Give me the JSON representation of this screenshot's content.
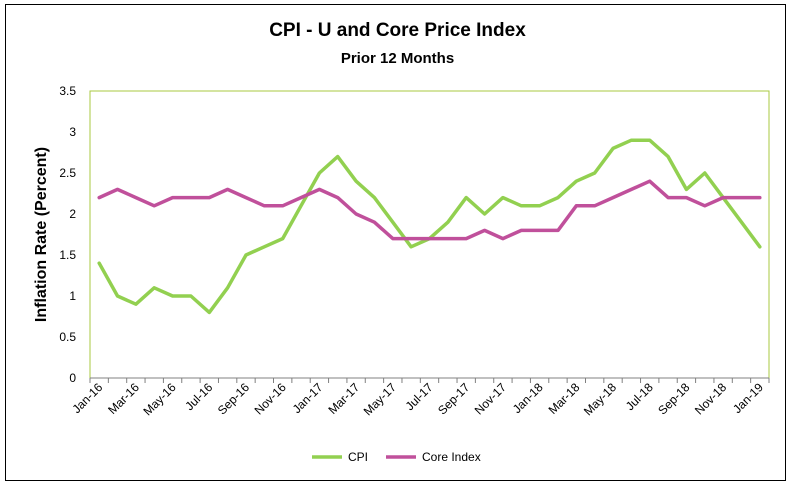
{
  "chart_data": {
    "type": "line",
    "title": "CPI - U and Core Price Index",
    "subtitle": "Prior 12 Months",
    "xlabel": "",
    "ylabel": "Inflation Rate (Percent)",
    "ylim": [
      0,
      3.5
    ],
    "yticks": [
      "0",
      "0.5",
      "1",
      "1.5",
      "2",
      "2.5",
      "3",
      "3.5"
    ],
    "x": [
      "Jan-16",
      "Feb-16",
      "Mar-16",
      "Apr-16",
      "May-16",
      "Jun-16",
      "Jul-16",
      "Aug-16",
      "Sep-16",
      "Oct-16",
      "Nov-16",
      "Dec-16",
      "Jan-17",
      "Feb-17",
      "Mar-17",
      "Apr-17",
      "May-17",
      "Jun-17",
      "Jul-17",
      "Aug-17",
      "Sep-17",
      "Oct-17",
      "Nov-17",
      "Dec-17",
      "Jan-18",
      "Feb-18",
      "Mar-18",
      "Apr-18",
      "May-18",
      "Jun-18",
      "Jul-18",
      "Aug-18",
      "Sep-18",
      "Oct-18",
      "Nov-18",
      "Dec-18",
      "Jan-19"
    ],
    "xtick_labels": [
      "Jan-16",
      "Mar-16",
      "May-16",
      "Jul-16",
      "Sep-16",
      "Nov-16",
      "Jan-17",
      "Mar-17",
      "May-17",
      "Jul-17",
      "Sep-17",
      "Nov-17",
      "Jan-18",
      "Mar-18",
      "May-18",
      "Jul-18",
      "Sep-18",
      "Nov-18",
      "Jan-19"
    ],
    "series": [
      {
        "name": "CPI",
        "color": "#92D050",
        "values": [
          1.4,
          1.0,
          0.9,
          1.1,
          1.0,
          1.0,
          0.8,
          1.1,
          1.5,
          1.6,
          1.7,
          2.1,
          2.5,
          2.7,
          2.4,
          2.2,
          1.9,
          1.6,
          1.7,
          1.9,
          2.2,
          2.0,
          2.2,
          2.1,
          2.1,
          2.2,
          2.4,
          2.5,
          2.8,
          2.9,
          2.9,
          2.7,
          2.3,
          2.5,
          2.2,
          1.9,
          1.6
        ]
      },
      {
        "name": "Core Index",
        "color": "#C0509B",
        "values": [
          2.2,
          2.3,
          2.2,
          2.1,
          2.2,
          2.2,
          2.2,
          2.3,
          2.2,
          2.1,
          2.1,
          2.2,
          2.3,
          2.2,
          2.0,
          1.9,
          1.7,
          1.7,
          1.7,
          1.7,
          1.7,
          1.8,
          1.7,
          1.8,
          1.8,
          1.8,
          2.1,
          2.1,
          2.2,
          2.3,
          2.4,
          2.2,
          2.2,
          2.1,
          2.2,
          2.2,
          2.2
        ]
      }
    ],
    "grid": false,
    "legend_position": "bottom"
  },
  "colors": {
    "plot_border": "#A9C940",
    "axis": "#808080"
  }
}
